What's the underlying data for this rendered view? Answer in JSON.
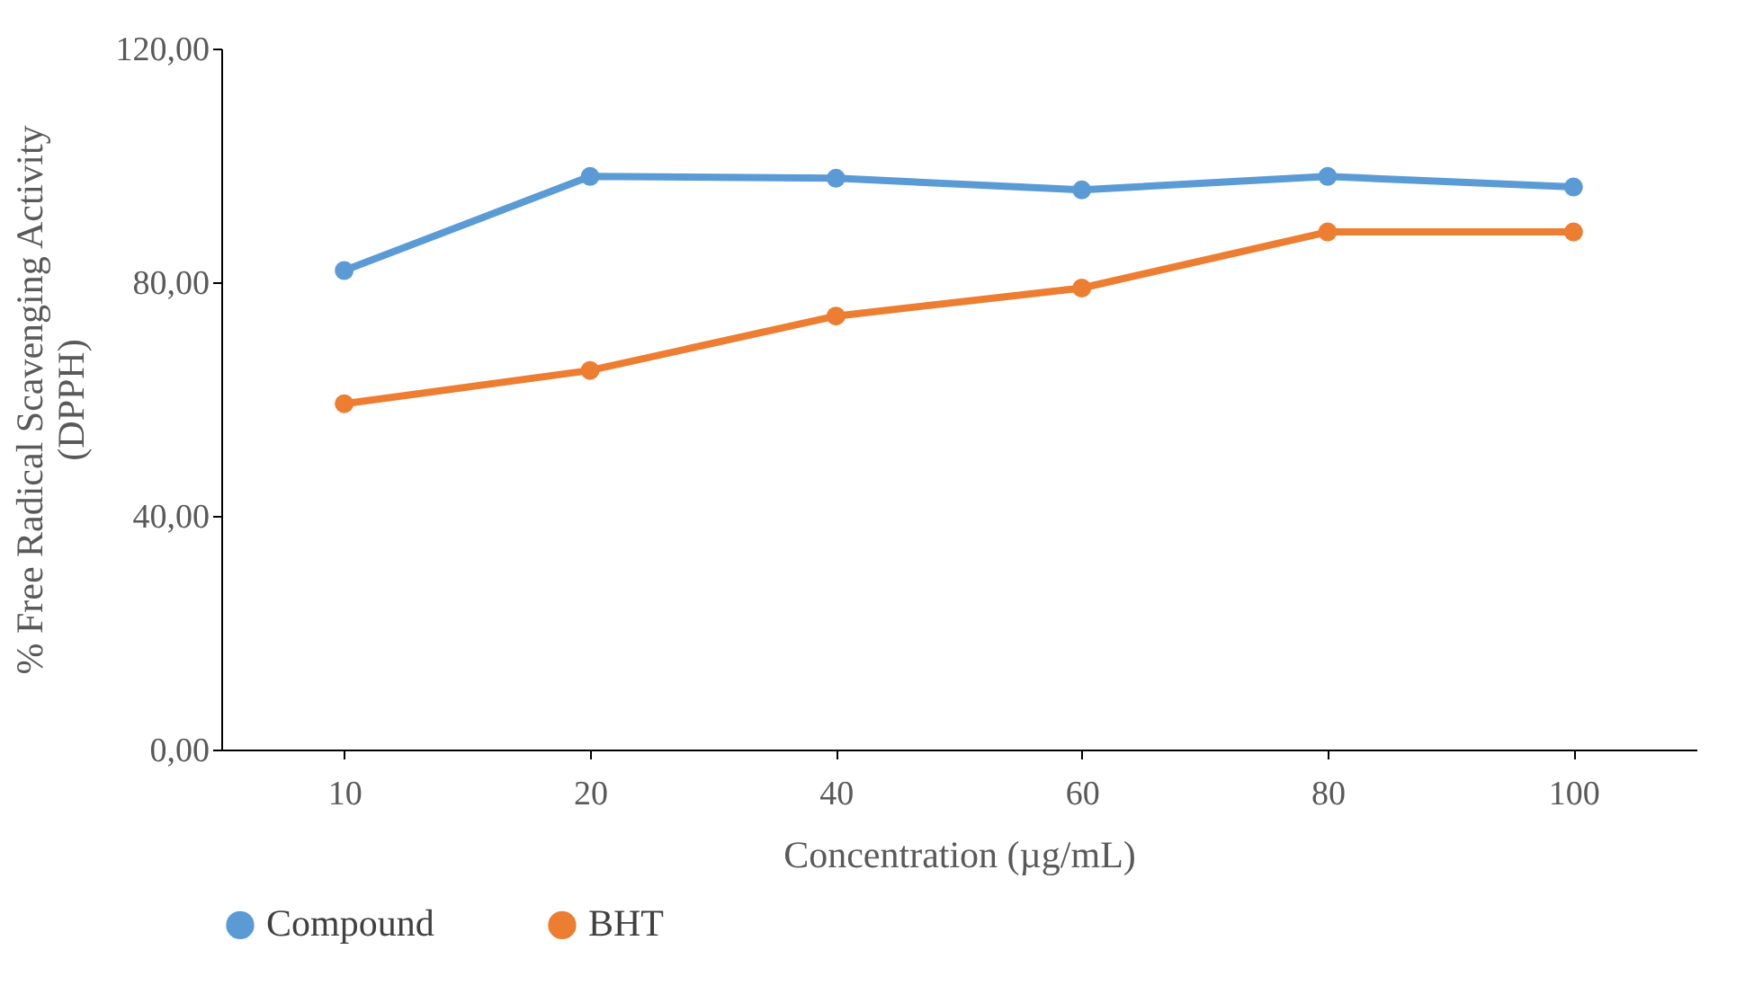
{
  "chart_data": {
    "type": "line",
    "categories": [
      "10",
      "20",
      "40",
      "60",
      "80",
      "100"
    ],
    "xlabel": "Concentration (µg/mL)",
    "ylabel": "% Free Radical Scavenging Activity\n(DPPH)",
    "ylim": [
      0,
      120
    ],
    "yticks": [
      {
        "value": 0,
        "label": "0,00"
      },
      {
        "value": 40,
        "label": "40,00"
      },
      {
        "value": 80,
        "label": "80,00"
      },
      {
        "value": 120,
        "label": "120,00"
      }
    ],
    "grid": false,
    "legend": "bottom",
    "marker": "circle",
    "line_style": "solid",
    "series": [
      {
        "name": "Compound",
        "color": "#5b9bd5",
        "values": [
          82.0,
          98.1,
          97.8,
          95.8,
          98.1,
          96.3
        ]
      },
      {
        "name": "BHT",
        "color": "#ed7d31",
        "values": [
          59.2,
          64.9,
          74.2,
          79.0,
          88.6,
          88.6
        ]
      }
    ]
  }
}
